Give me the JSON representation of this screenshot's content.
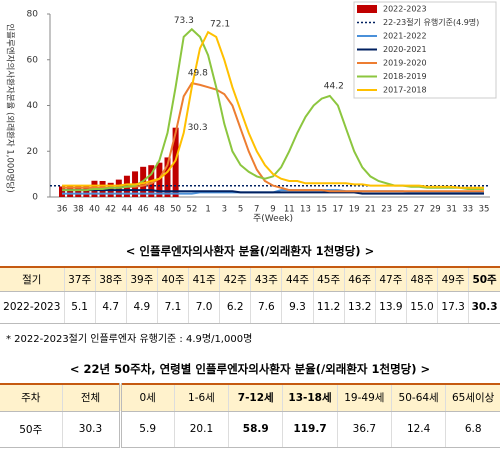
{
  "chart_data": {
    "type": "line",
    "y_label": "인플루엔자의사환자분율 (외래환자 1,000명당)",
    "x_label": "주(Week)",
    "categories": [
      "36",
      null,
      "38",
      null,
      "40",
      null,
      "42",
      null,
      "44",
      null,
      "46",
      null,
      "48",
      null,
      "50",
      null,
      "52",
      null,
      "1",
      null,
      "3",
      null,
      "5",
      null,
      "7",
      null,
      "9",
      null,
      "11",
      null,
      "13",
      null,
      "15",
      null,
      "17",
      null,
      "19",
      null,
      "21",
      null,
      "23",
      null,
      "25",
      null,
      "27",
      null,
      "29",
      null,
      "31",
      null,
      "33",
      null,
      "35"
    ],
    "ylim": [
      0,
      80
    ],
    "yticks": [
      0,
      20,
      40,
      60,
      80
    ],
    "threshold": {
      "name": "22-23절기 유행기준(4.9명)",
      "value": 4.9,
      "color": "#002060"
    },
    "series": [
      {
        "name": "2022-2023",
        "type": "bar",
        "color": "#c00000",
        "values": [
          4.6,
          5.1,
          4.7,
          4.9,
          7.1,
          7.0,
          6.2,
          7.6,
          9.3,
          11.2,
          13.2,
          13.9,
          15.0,
          17.3,
          30.3,
          null,
          null,
          null,
          null,
          null,
          null,
          null,
          null,
          null,
          null,
          null,
          null,
          null,
          null,
          null,
          null,
          null,
          null,
          null,
          null,
          null,
          null,
          null,
          null,
          null,
          null,
          null,
          null,
          null,
          null,
          null,
          null,
          null,
          null,
          null,
          null,
          null,
          null
        ]
      },
      {
        "name": "2021-2022",
        "type": "line",
        "color": "#4a90d9",
        "values": [
          1.5,
          1.5,
          1.5,
          1.5,
          1.5,
          1.5,
          1.5,
          1.5,
          1.5,
          1.5,
          1.5,
          1.5,
          1.5,
          1.5,
          1.5,
          1.5,
          1.5,
          2,
          2,
          2,
          2,
          2,
          2,
          2,
          2,
          2,
          2,
          3,
          3,
          3,
          3,
          3,
          3,
          3,
          3,
          2.5,
          2.5,
          2.5,
          2.5,
          2.5,
          2.5,
          2.5,
          2.5,
          2,
          2,
          2,
          2,
          2,
          2,
          2,
          2,
          2,
          2
        ]
      },
      {
        "name": "2020-2021",
        "type": "line",
        "color": "#002060",
        "values": [
          3,
          3,
          3,
          3,
          3,
          3,
          3,
          3,
          3,
          3,
          3,
          3,
          2.5,
          2.5,
          2.5,
          2.5,
          2.5,
          2.5,
          2.5,
          2.5,
          2.5,
          2.5,
          2,
          2,
          2,
          2,
          2,
          2,
          2,
          2,
          2,
          2,
          2,
          2,
          2,
          2,
          2,
          1.5,
          1.5,
          1.5,
          1.5,
          1.5,
          1.5,
          1.5,
          1.5,
          1.5,
          1.5,
          1.5,
          1.5,
          1.5,
          1.5,
          1.5,
          1.5
        ]
      },
      {
        "name": "2019-2020",
        "type": "line",
        "color": "#ed7d31",
        "values": [
          4,
          4,
          4,
          4,
          4,
          4,
          4,
          4,
          4.5,
          4.5,
          5,
          6,
          8,
          14,
          28,
          44,
          49.8,
          49,
          48,
          47,
          45,
          40,
          30,
          20,
          12,
          7,
          5,
          4,
          3,
          3,
          3,
          3,
          3,
          2.5,
          2.5,
          2.5,
          2.5,
          2.5,
          2.5,
          2.5,
          2.5,
          2.5,
          2.5,
          2.5,
          2.5,
          2.5,
          2.5,
          2.5,
          2.5,
          2.5,
          2.5,
          2.5,
          2.5
        ]
      },
      {
        "name": "2018-2019",
        "type": "line",
        "color": "#8cc63f",
        "values": [
          3,
          3,
          3,
          3,
          3.5,
          3.5,
          4,
          4,
          4.5,
          5,
          7,
          10,
          16,
          28,
          48,
          70,
          73.3,
          70,
          62,
          48,
          32,
          20,
          14,
          11,
          9,
          8,
          9,
          13,
          20,
          28,
          35,
          40,
          43,
          44.2,
          40,
          30,
          20,
          13,
          9,
          7,
          6,
          5,
          5,
          4.5,
          4.5,
          4,
          4,
          4,
          4,
          4,
          3.5,
          3.5,
          3.5
        ]
      },
      {
        "name": "2017-2018",
        "type": "line",
        "color": "#ffc000",
        "values": [
          5,
          5,
          5,
          5,
          5,
          5,
          5,
          5,
          5.5,
          5.5,
          6,
          7,
          8,
          11,
          16,
          28,
          48,
          65,
          72.1,
          70,
          60,
          48,
          38,
          28,
          20,
          14,
          10,
          8,
          7,
          7,
          6,
          6,
          6,
          6,
          6,
          6,
          5.5,
          5.5,
          5,
          5,
          5,
          5,
          5,
          5,
          5,
          4.5,
          4.5,
          4.5,
          4.5,
          4,
          4,
          4,
          4
        ]
      }
    ]
  },
  "table1": {
    "title": "< 인플루엔자의사환자 분율(/외래환자 1천명당) >",
    "header": [
      "절기",
      "37주",
      "38주",
      "39주",
      "40주",
      "41주",
      "42주",
      "43주",
      "44주",
      "45주",
      "46주",
      "47주",
      "48주",
      "49주",
      "50주"
    ],
    "rows": [
      [
        "2022-2023",
        "5.1",
        "4.7",
        "4.9",
        "7.1",
        "7.0",
        "6.2",
        "7.6",
        "9.3",
        "11.2",
        "13.2",
        "13.9",
        "15.0",
        "17.3",
        "30.3"
      ]
    ]
  },
  "note": "*  2022-2023절기 인플루엔자 유행기준 : 4.9명/1,000명",
  "table2": {
    "title": "< 22년 50주차, 연령별 인플루엔자의사환자 분율(/외래환자 1천명당) >",
    "header": [
      "주차",
      "전체",
      "0세",
      "1-6세",
      "7-12세",
      "13-18세",
      "19-49세",
      "50-64세",
      "65세이상"
    ],
    "rows": [
      [
        "50주",
        "30.3",
        "5.9",
        "20.1",
        "58.9",
        "119.7",
        "36.7",
        "12.4",
        "6.8"
      ]
    ]
  }
}
